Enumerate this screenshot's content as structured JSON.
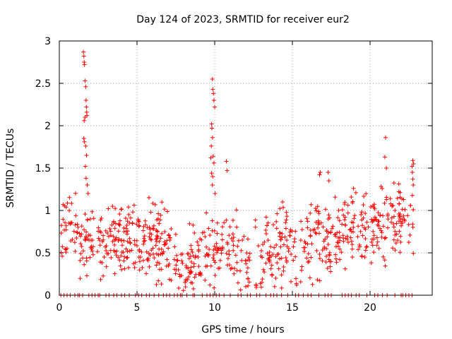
{
  "chart_data": {
    "type": "scatter",
    "title": "Day 124 of 2023, SRMTID for receiver eur2",
    "xlabel": "GPS time / hours",
    "ylabel": "SRMTID / TECUs",
    "xlim": [
      0,
      24
    ],
    "ylim": [
      0,
      3
    ],
    "xticks": [
      0,
      5,
      10,
      15,
      20
    ],
    "yticks": [
      0,
      0.5,
      1,
      1.5,
      2,
      2.5,
      3
    ],
    "ytick_labels": [
      "0",
      "0.5",
      "1",
      "1.5",
      "2",
      "2.5",
      "3"
    ],
    "grid": true,
    "marker": "+",
    "color": "#ff0000",
    "zero_points_x": [
      0.1,
      0.3,
      0.5,
      0.7,
      1.0,
      1.2,
      1.3,
      1.5,
      1.9,
      2.1,
      2.3,
      2.5,
      2.6,
      3.0,
      3.2,
      3.5,
      3.7,
      4.0,
      4.2,
      4.5,
      4.9,
      5.1,
      5.3,
      5.6,
      5.8,
      6.1,
      6.4,
      6.7,
      6.9,
      7.1,
      7.4,
      7.6,
      7.8,
      7.9,
      8.2,
      8.6,
      8.7,
      9.2,
      9.5,
      9.7,
      9.9,
      10.1,
      10.3,
      10.6,
      11.0,
      11.5,
      11.7,
      12.1,
      12.3,
      12.7,
      12.9,
      13.3,
      13.6,
      13.8,
      14.0,
      14.3,
      14.7,
      15.2,
      15.4,
      15.7,
      16.0,
      16.2,
      16.7,
      17.1,
      17.3,
      17.5,
      18.2,
      18.4,
      18.6,
      18.8,
      19.1,
      19.3,
      19.8,
      20.3,
      20.5,
      20.8,
      21.1,
      21.6,
      22.0,
      22.1,
      22.3,
      22.5,
      22.7
    ],
    "spike_points": [
      [
        1.55,
        2.87
      ],
      [
        1.58,
        2.82
      ],
      [
        1.6,
        2.75
      ],
      [
        1.62,
        2.72
      ],
      [
        1.65,
        2.53
      ],
      [
        1.7,
        2.46
      ],
      [
        1.72,
        2.3
      ],
      [
        1.74,
        2.22
      ],
      [
        1.76,
        2.16
      ],
      [
        1.78,
        2.12
      ],
      [
        1.6,
        2.06
      ],
      [
        1.65,
        2.1
      ],
      [
        1.58,
        1.85
      ],
      [
        1.62,
        1.81
      ],
      [
        1.7,
        1.76
      ],
      [
        1.75,
        1.65
      ],
      [
        1.68,
        1.52
      ],
      [
        1.72,
        1.38
      ],
      [
        1.8,
        1.3
      ],
      [
        1.85,
        1.2
      ],
      [
        9.85,
        2.55
      ],
      [
        9.88,
        2.43
      ],
      [
        9.92,
        2.38
      ],
      [
        9.95,
        2.3
      ],
      [
        10.0,
        2.22
      ],
      [
        9.8,
        2.02
      ],
      [
        9.82,
        1.97
      ],
      [
        9.86,
        1.86
      ],
      [
        9.78,
        1.76
      ],
      [
        9.9,
        1.64
      ],
      [
        9.75,
        1.62
      ],
      [
        9.95,
        1.56
      ],
      [
        9.8,
        1.44
      ],
      [
        9.87,
        1.4
      ],
      [
        9.85,
        1.3
      ],
      [
        10.02,
        1.2
      ],
      [
        21.0,
        1.86
      ],
      [
        20.95,
        1.63
      ],
      [
        21.05,
        1.5
      ],
      [
        22.75,
        1.59
      ],
      [
        22.8,
        1.55
      ],
      [
        22.7,
        1.52
      ],
      [
        22.72,
        1.45
      ],
      [
        22.78,
        1.3
      ],
      [
        16.8,
        1.45
      ],
      [
        16.75,
        1.42
      ],
      [
        17.3,
        1.45
      ],
      [
        17.35,
        1.35
      ],
      [
        10.75,
        1.58
      ],
      [
        10.8,
        1.47
      ]
    ]
  }
}
